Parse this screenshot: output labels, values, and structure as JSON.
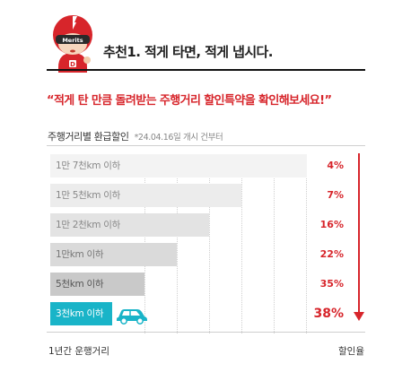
{
  "header": {
    "mascot_badge": "Merits",
    "title": "추천1. 적게 타면, 적게 냅시다."
  },
  "quote": "“적게 탄 만큼 돌려받는 주행거리 할인특약을 확인해보세요!”",
  "subtitle": {
    "main": "주행거리별 환급할인",
    "note": "*24.04.16일 개시 건부터"
  },
  "chart_data": {
    "type": "bar",
    "orientation": "horizontal",
    "categories": [
      "1만 7천km 이하",
      "1만 5천km 이하",
      "1만 2천km 이하",
      "1만km 이하",
      "5천km 이하",
      "3천km 이하"
    ],
    "values": [
      4,
      7,
      16,
      22,
      35,
      38
    ],
    "value_labels": [
      "4%",
      "7%",
      "16%",
      "22%",
      "35%",
      "38%"
    ],
    "xlabel": "1년간 운행거리",
    "ylabel": "할인율",
    "highlight_color": "#19b4c8",
    "accent_color": "#d7252b"
  },
  "footer": {
    "x_axis": "1년간 운행거리",
    "rate_axis": "할인율"
  }
}
